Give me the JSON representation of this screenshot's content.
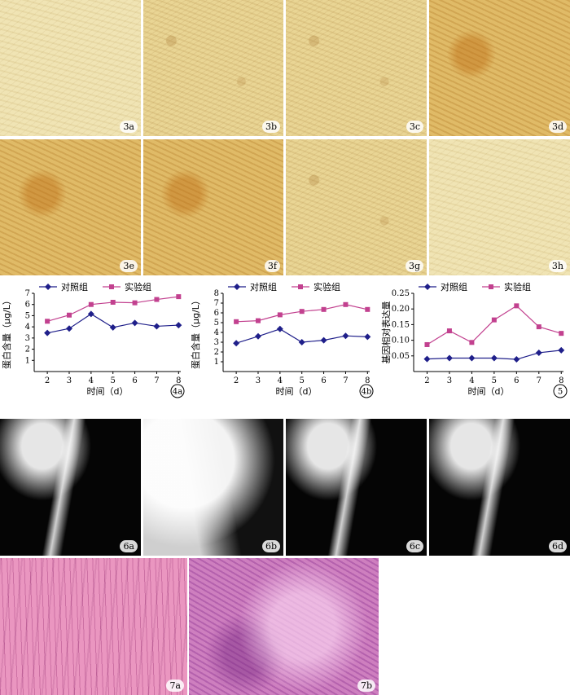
{
  "panels_row1": [
    {
      "label": "3a",
      "style": "micro light"
    },
    {
      "label": "3b",
      "style": "micro"
    },
    {
      "label": "3c",
      "style": "micro"
    },
    {
      "label": "3d",
      "style": "micro dark"
    }
  ],
  "panels_row2": [
    {
      "label": "3e",
      "style": "micro dark"
    },
    {
      "label": "3f",
      "style": "micro dark"
    },
    {
      "label": "3g",
      "style": "micro"
    },
    {
      "label": "3h",
      "style": "micro light"
    }
  ],
  "panels_xray": [
    {
      "label": "6a",
      "style": "xray"
    },
    {
      "label": "6b",
      "style": "xray bright"
    },
    {
      "label": "6c",
      "style": "xray"
    },
    {
      "label": "6d",
      "style": "xray"
    }
  ],
  "panels_he": [
    {
      "label": "7a",
      "style": "he-a"
    },
    {
      "label": "7b",
      "style": "he-b"
    }
  ],
  "colors": {
    "control": "#1f1f8a",
    "experiment": "#c2418f"
  },
  "chart_data": [
    {
      "type": "line",
      "id": "4a",
      "xlabel": "时间（d）",
      "ylabel": "蛋白含量（μg/L）",
      "x": [
        2,
        3,
        4,
        5,
        6,
        7,
        8
      ],
      "ylim": [
        0,
        7
      ],
      "yticks": [
        1,
        2,
        3,
        4,
        5,
        6,
        7
      ],
      "series": [
        {
          "name": "对照组",
          "values": [
            3.45,
            3.85,
            5.15,
            3.95,
            4.35,
            4.05,
            4.15
          ],
          "marker": "diamond"
        },
        {
          "name": "实验组",
          "values": [
            4.5,
            5.05,
            6.0,
            6.2,
            6.15,
            6.45,
            6.7
          ],
          "marker": "square"
        }
      ],
      "legend": "top"
    },
    {
      "type": "line",
      "id": "4b",
      "xlabel": "时间（d）",
      "ylabel": "蛋白含量（μg/L）",
      "x": [
        2,
        3,
        4,
        5,
        6,
        7,
        8
      ],
      "ylim": [
        0,
        8
      ],
      "yticks": [
        1,
        2,
        3,
        4,
        5,
        6,
        7,
        8
      ],
      "series": [
        {
          "name": "对照组",
          "values": [
            2.9,
            3.6,
            4.35,
            3.0,
            3.2,
            3.65,
            3.55
          ],
          "marker": "diamond"
        },
        {
          "name": "实验组",
          "values": [
            5.1,
            5.2,
            5.8,
            6.15,
            6.35,
            6.85,
            6.35
          ],
          "marker": "square"
        }
      ],
      "legend": "top"
    },
    {
      "type": "line",
      "id": "5",
      "xlabel": "时间（d）",
      "ylabel": "基因相对表达量",
      "x": [
        2,
        3,
        4,
        5,
        6,
        7,
        8
      ],
      "ylim": [
        0,
        0.25
      ],
      "yticks": [
        0.05,
        0.1,
        0.15,
        0.2,
        0.25
      ],
      "ytick_labels": [
        "0.05",
        "0.10",
        "0.15",
        "0.20",
        "0.25"
      ],
      "series": [
        {
          "name": "对照组",
          "values": [
            0.04,
            0.043,
            0.043,
            0.043,
            0.039,
            0.06,
            0.068
          ],
          "marker": "diamond"
        },
        {
          "name": "实验组",
          "values": [
            0.086,
            0.13,
            0.093,
            0.165,
            0.21,
            0.143,
            0.122
          ],
          "marker": "square"
        }
      ],
      "legend": "top"
    }
  ]
}
